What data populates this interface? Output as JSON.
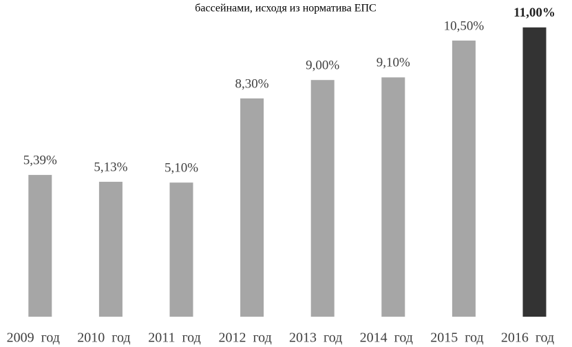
{
  "chart_data": {
    "type": "bar",
    "title": "бассейнами, исходя  из норматива ЕПС",
    "categories": [
      "2009  год",
      "2010  год",
      "2011  год",
      "2012  год",
      "2013  год",
      "2014  год",
      "2015  год",
      "2016  год"
    ],
    "values": [
      5.39,
      5.13,
      5.1,
      8.3,
      9.0,
      9.1,
      10.5,
      11.0
    ],
    "value_labels": [
      "5,39%",
      "5,13%",
      "5,10%",
      "8,30%",
      "9,00%",
      "9,10%",
      "10,50%",
      "11,00%"
    ],
    "colors": [
      "#a6a6a6",
      "#a6a6a6",
      "#a6a6a6",
      "#a6a6a6",
      "#a6a6a6",
      "#a6a6a6",
      "#a6a6a6",
      "#333333"
    ]
  }
}
